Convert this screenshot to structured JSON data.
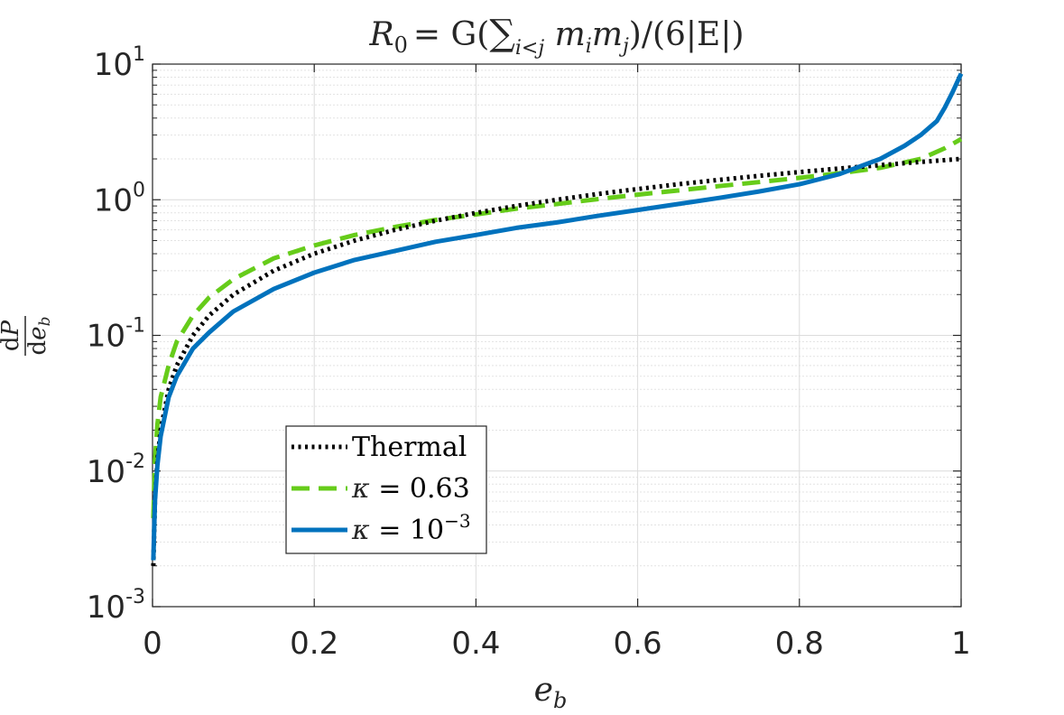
{
  "chart_data": {
    "type": "line",
    "title": "R_0 = G(Σ_{i<j} m_i m_j)/(6|E|)",
    "title_parts": {
      "lhs": "R",
      "lhs_sub": "0",
      "rhs": "= G(",
      "sum": "∑",
      "sum_sub": "i<j",
      "terms": " m",
      "ti": "i",
      "tm": "m",
      "tj": "j",
      "tail": ")/(6|E|)"
    },
    "xlabel": "e_b",
    "xlabel_parts": {
      "base": "e",
      "sub": "b"
    },
    "ylabel": "dP/de_b",
    "ylabel_parts": {
      "num_d": "d",
      "num_var": "P",
      "den_d": "d",
      "den_var": "e",
      "den_sub": "b"
    },
    "xscale": "linear",
    "yscale": "log",
    "xlim": [
      0,
      1
    ],
    "ylim": [
      0.001,
      10
    ],
    "grid": true,
    "minor_grid": true,
    "x_ticks": [
      0,
      0.2,
      0.4,
      0.6,
      0.8,
      1
    ],
    "x_tick_labels": [
      "0",
      "0.2",
      "0.4",
      "0.6",
      "0.8",
      "1"
    ],
    "y_ticks": [
      {
        "value": 0.001,
        "base": "10",
        "exp": "-3"
      },
      {
        "value": 0.01,
        "base": "10",
        "exp": "-2"
      },
      {
        "value": 0.1,
        "base": "10",
        "exp": "-1"
      },
      {
        "value": 1,
        "base": "10",
        "exp": "0"
      },
      {
        "value": 10,
        "base": "10",
        "exp": "1"
      }
    ],
    "legend_position": "lower-left",
    "series": [
      {
        "name": "Thermal",
        "legend_label": "Thermal",
        "color": "#000000",
        "style": "dotted",
        "x": [
          0.001,
          0.003,
          0.006,
          0.01,
          0.02,
          0.03,
          0.05,
          0.07,
          0.1,
          0.15,
          0.2,
          0.25,
          0.3,
          0.35,
          0.4,
          0.45,
          0.5,
          0.55,
          0.6,
          0.65,
          0.7,
          0.75,
          0.8,
          0.85,
          0.9,
          0.95,
          1.0
        ],
        "y": [
          0.002,
          0.006,
          0.012,
          0.02,
          0.04,
          0.06,
          0.1,
          0.14,
          0.2,
          0.3,
          0.4,
          0.5,
          0.6,
          0.7,
          0.8,
          0.9,
          1.0,
          1.1,
          1.2,
          1.3,
          1.4,
          1.5,
          1.6,
          1.7,
          1.8,
          1.9,
          2.0
        ]
      },
      {
        "name": "kappa = 0.63",
        "legend_label": "κ = 0.63",
        "legend_parts": {
          "sym": "κ",
          "rest": " = 0.63"
        },
        "color": "#66cc1a",
        "style": "dashed",
        "x": [
          0.001,
          0.003,
          0.006,
          0.01,
          0.02,
          0.03,
          0.05,
          0.07,
          0.1,
          0.15,
          0.2,
          0.25,
          0.3,
          0.35,
          0.4,
          0.45,
          0.5,
          0.55,
          0.6,
          0.65,
          0.7,
          0.75,
          0.8,
          0.85,
          0.9,
          0.95,
          0.98,
          1.0
        ],
        "y": [
          0.0045,
          0.012,
          0.022,
          0.035,
          0.06,
          0.09,
          0.14,
          0.19,
          0.26,
          0.37,
          0.46,
          0.55,
          0.63,
          0.71,
          0.78,
          0.86,
          0.93,
          1.01,
          1.09,
          1.17,
          1.26,
          1.35,
          1.45,
          1.57,
          1.72,
          2.0,
          2.4,
          2.8
        ]
      },
      {
        "name": "kappa = 1e-3",
        "legend_label": "κ = 10^-3",
        "legend_parts": {
          "sym": "κ",
          "rest": " = 10",
          "exp": "−3"
        },
        "color": "#0072bd",
        "style": "solid",
        "x": [
          0.001,
          0.003,
          0.006,
          0.01,
          0.02,
          0.03,
          0.05,
          0.07,
          0.1,
          0.15,
          0.2,
          0.25,
          0.3,
          0.35,
          0.4,
          0.45,
          0.5,
          0.55,
          0.6,
          0.65,
          0.7,
          0.75,
          0.8,
          0.85,
          0.9,
          0.93,
          0.95,
          0.97,
          0.98,
          0.99,
          1.0
        ],
        "y": [
          0.0022,
          0.006,
          0.011,
          0.018,
          0.035,
          0.05,
          0.08,
          0.105,
          0.15,
          0.22,
          0.29,
          0.36,
          0.42,
          0.49,
          0.55,
          0.62,
          0.68,
          0.76,
          0.84,
          0.93,
          1.03,
          1.15,
          1.3,
          1.55,
          2.0,
          2.5,
          3.0,
          3.8,
          4.8,
          6.3,
          8.5
        ]
      }
    ]
  }
}
